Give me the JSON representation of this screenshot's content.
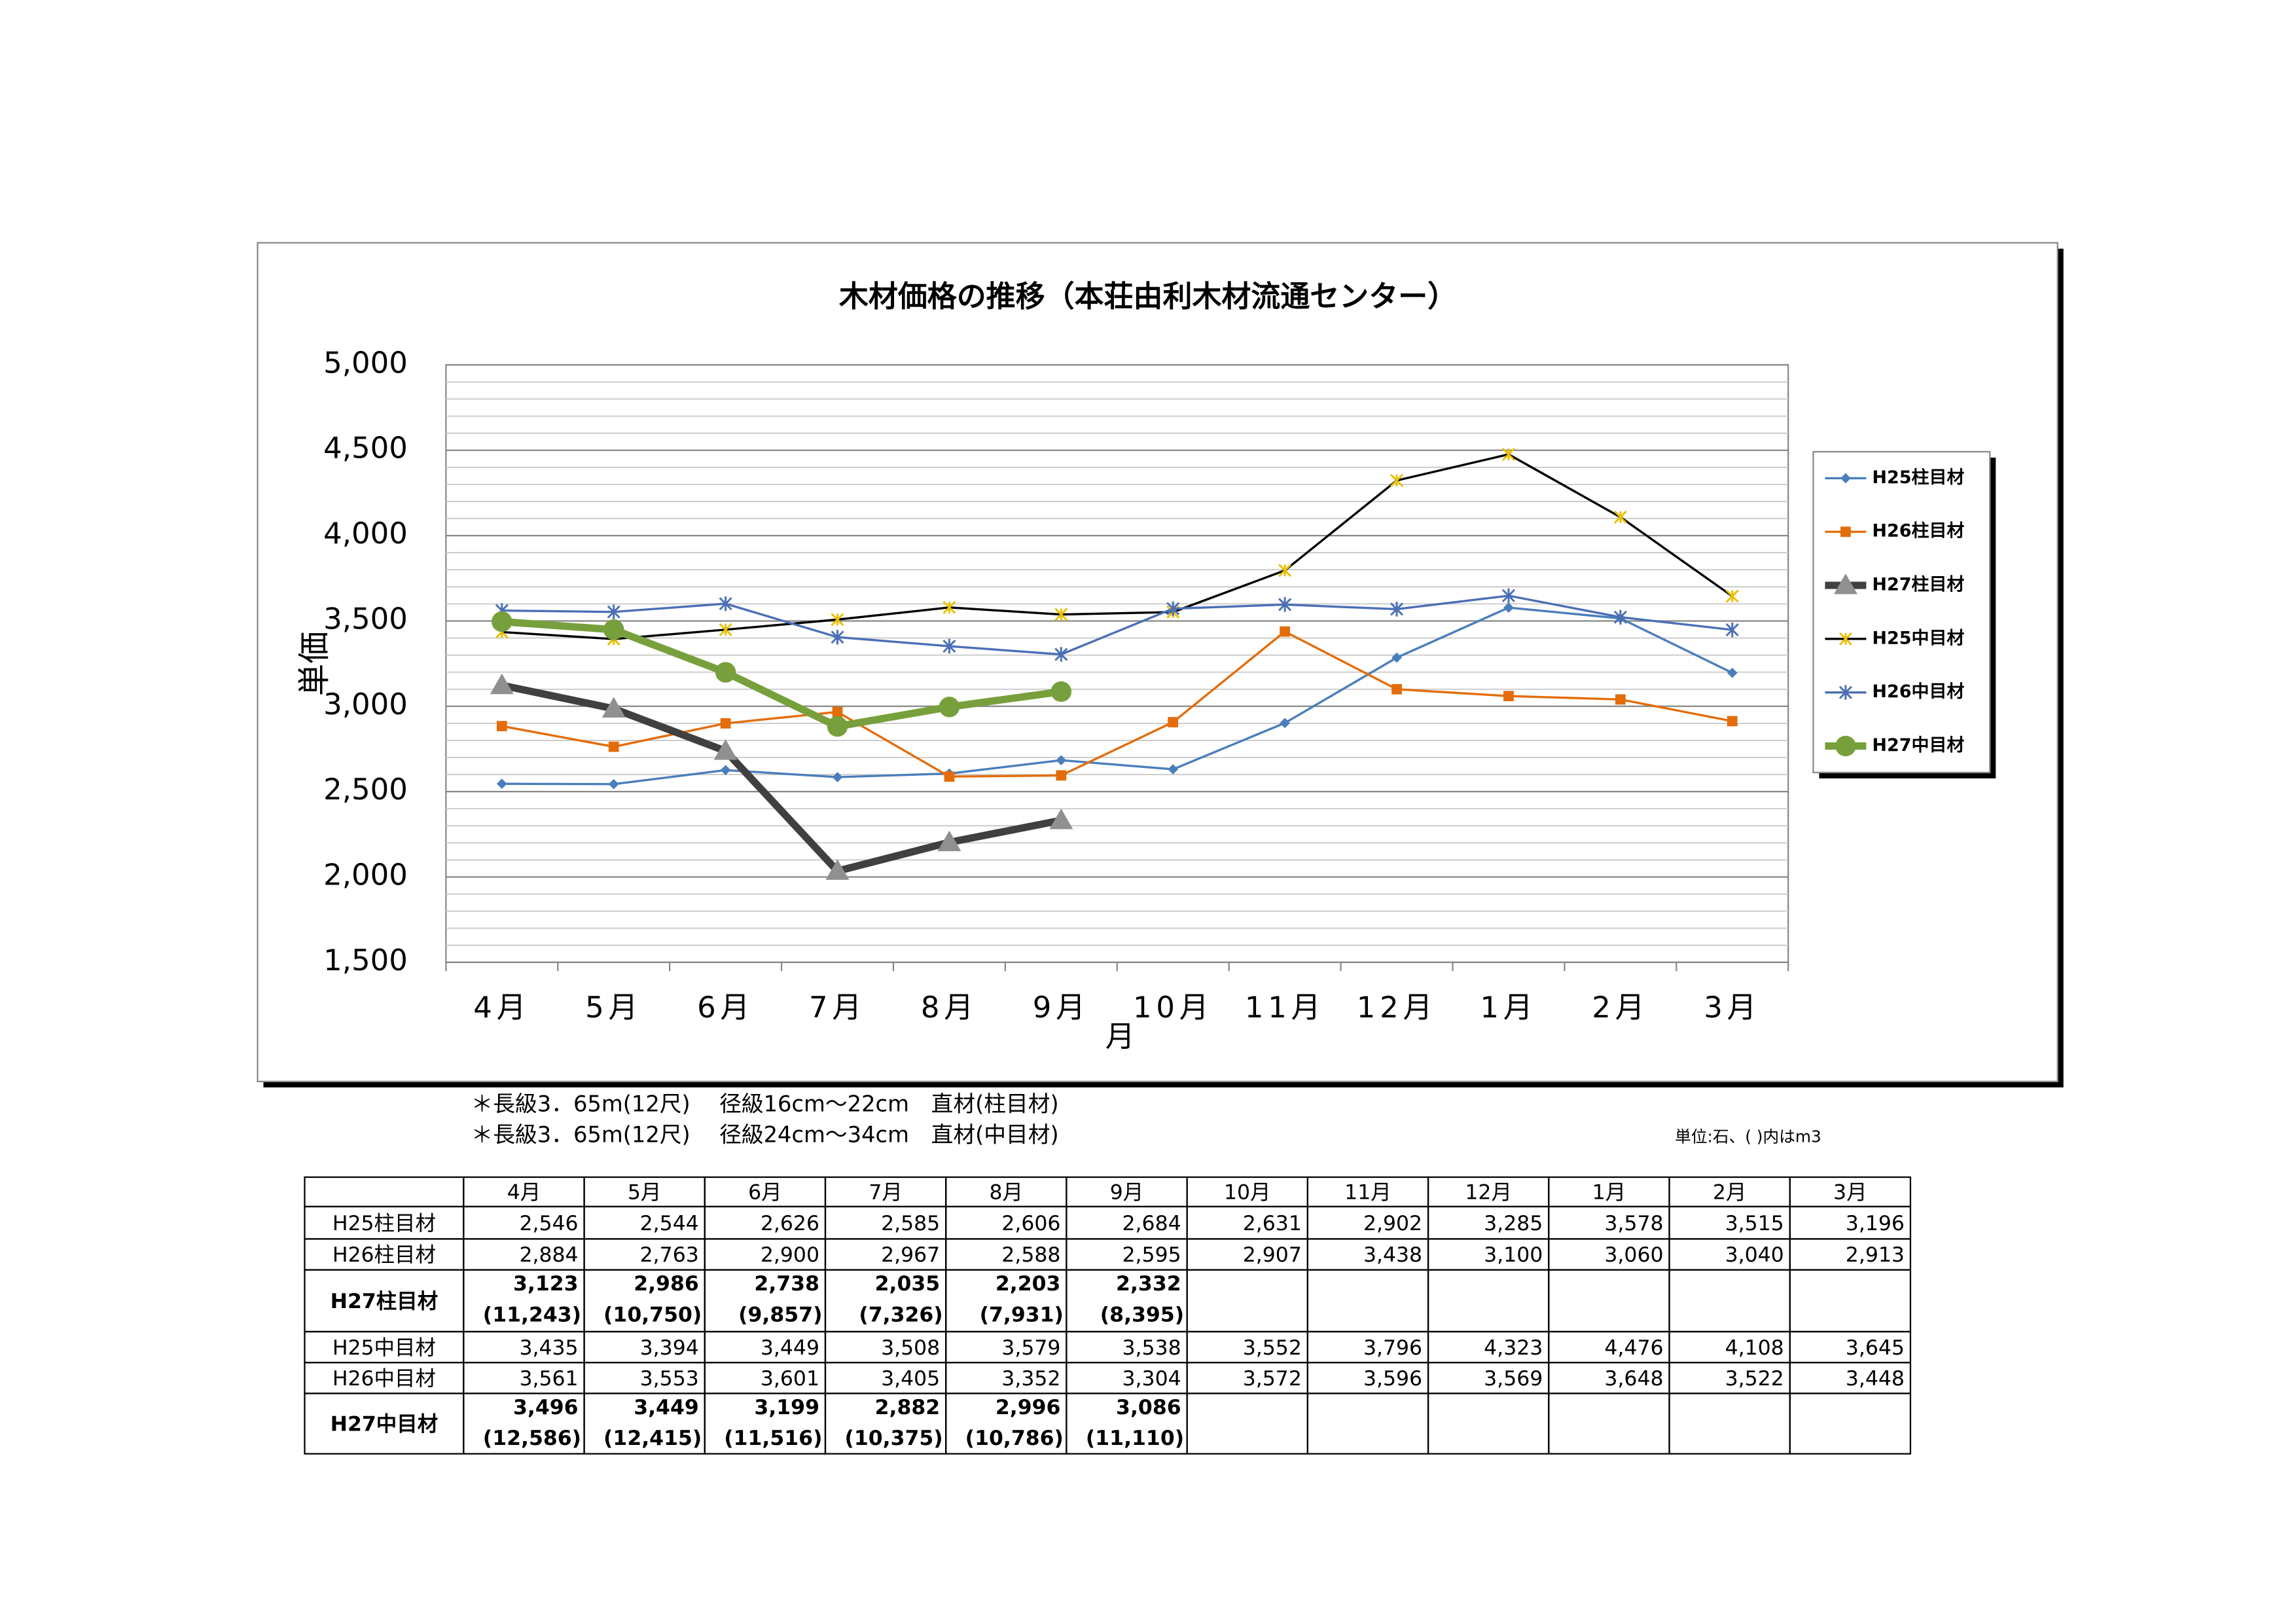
{
  "chart_data": {
    "type": "line",
    "title": "木材価格の推移（本荘由利木材流通センター）",
    "y_label": "単価",
    "x_label": "月",
    "categories": [
      "4月",
      "5月",
      "6月",
      "7月",
      "8月",
      "9月",
      "10月",
      "11月",
      "12月",
      "1月",
      "2月",
      "3月"
    ],
    "series": [
      {
        "name": "H25柱目材",
        "color": "#4a7ebb",
        "marker": "diamond",
        "width": 1.5,
        "values": [
          2546,
          2544,
          2626,
          2585,
          2606,
          2684,
          2631,
          2902,
          3285,
          3578,
          3515,
          3196
        ]
      },
      {
        "name": "H26柱目材",
        "color": "#e46c0a",
        "marker": "square",
        "width": 1.5,
        "values": [
          2884,
          2763,
          2900,
          2967,
          2588,
          2595,
          2907,
          3438,
          3100,
          3060,
          3040,
          2913
        ]
      },
      {
        "name": "H27柱目材",
        "color": "#404040",
        "marker": "triangle",
        "marker_color": "#909090",
        "width": 5,
        "values": [
          3123,
          2986,
          2738,
          2035,
          2203,
          2332,
          null,
          null,
          null,
          null,
          null,
          null
        ]
      },
      {
        "name": "H25中目材",
        "color": "#000000",
        "marker": "star",
        "marker_color": "#e8c000",
        "width": 1.5,
        "values": [
          3435,
          3394,
          3449,
          3508,
          3579,
          3538,
          3552,
          3796,
          4323,
          4476,
          4108,
          3645
        ]
      },
      {
        "name": "H26中目材",
        "color": "#4a6fb5",
        "marker": "asterisk",
        "width": 1.5,
        "values": [
          3561,
          3553,
          3601,
          3405,
          3352,
          3304,
          3572,
          3596,
          3569,
          3648,
          3522,
          3448
        ]
      },
      {
        "name": "H27中目材",
        "color": "#77a03c",
        "marker": "circle",
        "width": 5,
        "values": [
          3496,
          3449,
          3199,
          2882,
          2996,
          3086,
          null,
          null,
          null,
          null,
          null,
          null
        ]
      }
    ],
    "ylim": [
      1500,
      5000
    ],
    "yticks": [
      {
        "value": 1500,
        "label": "1,500"
      },
      {
        "value": 2000,
        "label": "2,000"
      },
      {
        "value": 2500,
        "label": "2,500"
      },
      {
        "value": 3000,
        "label": "3,000"
      },
      {
        "value": 3500,
        "label": "3,500"
      },
      {
        "value": 4000,
        "label": "4,000"
      },
      {
        "value": 4500,
        "label": "4,500"
      },
      {
        "value": 5000,
        "label": "5,000"
      }
    ],
    "grid": true,
    "minor_grid": true,
    "legend": "right"
  },
  "notes": [
    "＊長級3．65m(12尺)　 径級16cm～22cm　直材(柱目材)",
    "＊長級3．65m(12尺)　 径級24cm～34cm　直材(中目材)"
  ],
  "unit": "単位:石、( )内はm3",
  "table": {
    "header": [
      "4月",
      "5月",
      "6月",
      "7月",
      "8月",
      "9月",
      "10月",
      "11月",
      "12月",
      "1月",
      "2月",
      "3月"
    ],
    "rows": [
      {
        "label": "H25柱目材",
        "values": [
          "2,546",
          "2,544",
          "2,626",
          "2,585",
          "2,606",
          "2,684",
          "2,631",
          "2,902",
          "3,285",
          "3,578",
          "3,515",
          "3,196"
        ]
      },
      {
        "label": "H26柱目材",
        "values": [
          "2,884",
          "2,763",
          "2,900",
          "2,967",
          "2,588",
          "2,595",
          "2,907",
          "3,438",
          "3,100",
          "3,060",
          "3,040",
          "2,913"
        ]
      },
      {
        "label": "H27柱目材",
        "values": [
          "3,123",
          "2,986",
          "2,738",
          "2,035",
          "2,203",
          "2,332"
        ],
        "sub": [
          "(11,243)",
          "(10,750)",
          "(9,857)",
          "(7,326)",
          "(7,931)",
          "(8,395)"
        ]
      },
      {
        "label": "H25中目材",
        "values": [
          "3,435",
          "3,394",
          "3,449",
          "3,508",
          "3,579",
          "3,538",
          "3,552",
          "3,796",
          "4,323",
          "4,476",
          "4,108",
          "3,645"
        ]
      },
      {
        "label": "H26中目材",
        "values": [
          "3,561",
          "3,553",
          "3,601",
          "3,405",
          "3,352",
          "3,304",
          "3,572",
          "3,596",
          "3,569",
          "3,648",
          "3,522",
          "3,448"
        ]
      },
      {
        "label": "H27中目材",
        "values": [
          "3,496",
          "3,449",
          "3,199",
          "2,882",
          "2,996",
          "3,086"
        ],
        "sub": [
          "(12,586)",
          "(12,415)",
          "(11,516)",
          "(10,375)",
          "(10,786)",
          "(11,110)"
        ]
      }
    ]
  }
}
